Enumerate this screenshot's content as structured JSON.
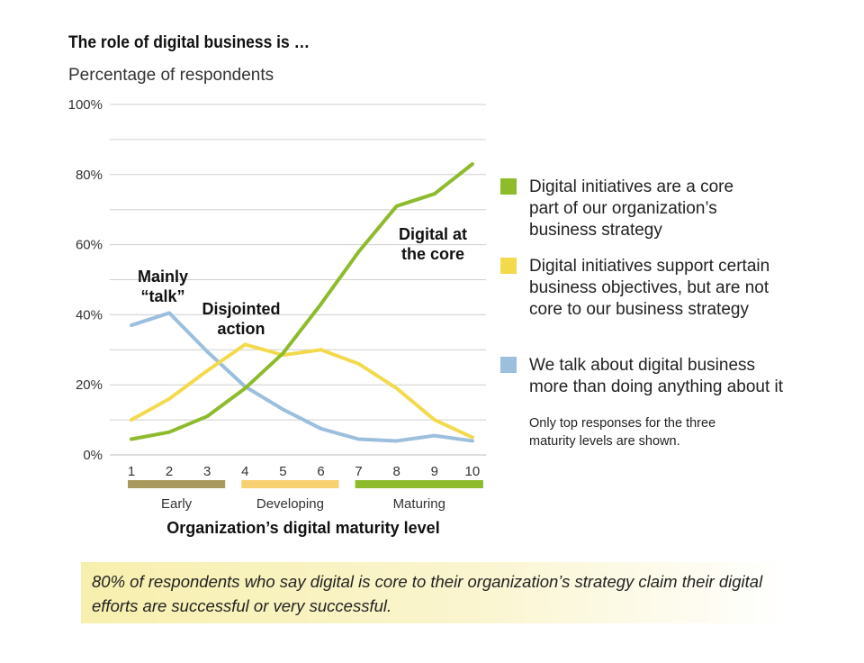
{
  "header": {
    "title": "The role of digital business is …",
    "subtitle": "Percentage of respondents"
  },
  "chart_data": {
    "type": "line",
    "x": [
      1,
      2,
      3,
      4,
      5,
      6,
      7,
      8,
      9,
      10
    ],
    "ylim": [
      0,
      100
    ],
    "yticks": [
      "0%",
      "20%",
      "40%",
      "60%",
      "80%",
      "100%"
    ],
    "xlabel": "Organization’s digital maturity level",
    "grid": true,
    "legend_position": "right",
    "series": [
      {
        "name": "Digital initiatives are a core part of our organization’s business strategy",
        "color": "#8dbb2c",
        "values": [
          4.5,
          6.5,
          11,
          19,
          29,
          43,
          58,
          71,
          74.5,
          83
        ]
      },
      {
        "name": "Digital initiatives support certain business objectives, but are not core to our business strategy",
        "color": "#f3da4d",
        "values": [
          10,
          16,
          24,
          31.5,
          28.5,
          30,
          26,
          19,
          10,
          5
        ]
      },
      {
        "name": "We talk about digital business more than doing anything about it",
        "color": "#9bbfdd",
        "values": [
          37,
          40.5,
          29.5,
          19.5,
          13,
          7.5,
          4.5,
          4,
          5.5,
          4
        ]
      }
    ],
    "groups": [
      {
        "label": "Early",
        "from": 1,
        "to": 3,
        "color": "#a89a5e"
      },
      {
        "label": "Developing",
        "from": 4,
        "to": 6,
        "color": "#f7d070"
      },
      {
        "label": "Maturing",
        "from": 7,
        "to": 10,
        "color": "#8dbb2c"
      }
    ],
    "annotations": [
      {
        "text": "Mainly\n“talk”",
        "x": 2
      },
      {
        "text": "Disjointed\naction",
        "x": 4
      },
      {
        "text": "Digital at\nthe core",
        "x": 8.8
      }
    ]
  },
  "legend": {
    "items": [
      {
        "text": "Digital initiatives are a core\npart of our organization’s\nbusiness strategy",
        "color": "#8dbb2c"
      },
      {
        "text": "Digital initiatives support certain\nbusiness objectives, but are not\ncore to our business strategy",
        "color": "#f3da4d"
      },
      {
        "text": "We talk about digital business\nmore than doing anything about it",
        "color": "#9bbfdd"
      }
    ],
    "note": "Only top responses for the three\nmaturity levels are shown."
  },
  "callout": {
    "text": "80% of respondents who say digital is core to their organization’s strategy claim their digital efforts are successful or very successful."
  }
}
